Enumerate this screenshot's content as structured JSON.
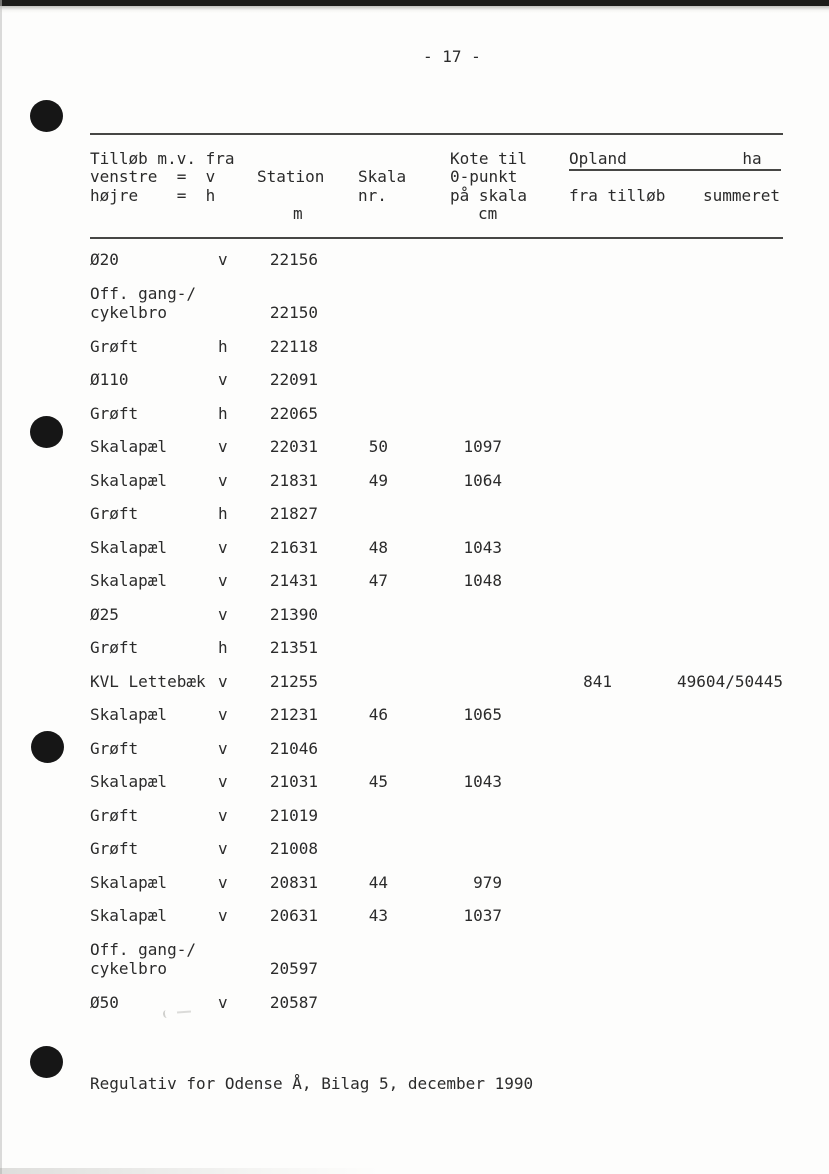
{
  "page": {
    "number": "- 17 -",
    "footer": "Regulativ for Odense Å, Bilag 5, december 1990"
  },
  "table": {
    "header": {
      "tributary_line1": "Tilløb m.v. fra",
      "tributary_line2": "venstre  =  v",
      "tributary_line3": "højre    =  h",
      "station": "Station",
      "station_unit": "m",
      "skala": "Skala",
      "skala_sub": "nr.",
      "kote_line1": "Kote til",
      "kote_line2": "0-punkt",
      "kote_line3": "på skala",
      "kote_unit": "cm",
      "opland_ha": "Opland            ha  ",
      "fra_tillob": "fra tilløb",
      "summeret": "summeret"
    },
    "rows": [
      {
        "name": "Ø20",
        "side": "v",
        "station": "22156",
        "skala": "",
        "kote": "",
        "fra": "",
        "sum": ""
      },
      {
        "name": "Off. gang-/\ncykelbro",
        "side": "",
        "station": "22150",
        "skala": "",
        "kote": "",
        "fra": "",
        "sum": ""
      },
      {
        "name": "Grøft",
        "side": "h",
        "station": "22118",
        "skala": "",
        "kote": "",
        "fra": "",
        "sum": ""
      },
      {
        "name": "Ø110",
        "side": "v",
        "station": "22091",
        "skala": "",
        "kote": "",
        "fra": "",
        "sum": ""
      },
      {
        "name": "Grøft",
        "side": "h",
        "station": "22065",
        "skala": "",
        "kote": "",
        "fra": "",
        "sum": ""
      },
      {
        "name": "Skalapæl",
        "side": "v",
        "station": "22031",
        "skala": "50",
        "kote": "1097",
        "fra": "",
        "sum": ""
      },
      {
        "name": "Skalapæl",
        "side": "v",
        "station": "21831",
        "skala": "49",
        "kote": "1064",
        "fra": "",
        "sum": ""
      },
      {
        "name": "Grøft",
        "side": "h",
        "station": "21827",
        "skala": "",
        "kote": "",
        "fra": "",
        "sum": ""
      },
      {
        "name": "Skalapæl",
        "side": "v",
        "station": "21631",
        "skala": "48",
        "kote": "1043",
        "fra": "",
        "sum": ""
      },
      {
        "name": "Skalapæl",
        "side": "v",
        "station": "21431",
        "skala": "47",
        "kote": "1048",
        "fra": "",
        "sum": ""
      },
      {
        "name": "Ø25",
        "side": "v",
        "station": "21390",
        "skala": "",
        "kote": "",
        "fra": "",
        "sum": ""
      },
      {
        "name": "Grøft",
        "side": "h",
        "station": "21351",
        "skala": "",
        "kote": "",
        "fra": "",
        "sum": ""
      },
      {
        "name": "KVL Lettebæk",
        "side": "v",
        "station": "21255",
        "skala": "",
        "kote": "",
        "fra": "841",
        "sum": "49604/50445"
      },
      {
        "name": "Skalapæl",
        "side": "v",
        "station": "21231",
        "skala": "46",
        "kote": "1065",
        "fra": "",
        "sum": ""
      },
      {
        "name": "Grøft",
        "side": "v",
        "station": "21046",
        "skala": "",
        "kote": "",
        "fra": "",
        "sum": ""
      },
      {
        "name": "Skalapæl",
        "side": "v",
        "station": "21031",
        "skala": "45",
        "kote": "1043",
        "fra": "",
        "sum": ""
      },
      {
        "name": "Grøft",
        "side": "v",
        "station": "21019",
        "skala": "",
        "kote": "",
        "fra": "",
        "sum": ""
      },
      {
        "name": "Grøft",
        "side": "v",
        "station": "21008",
        "skala": "",
        "kote": "",
        "fra": "",
        "sum": ""
      },
      {
        "name": "Skalapæl",
        "side": "v",
        "station": "20831",
        "skala": "44",
        "kote": "979",
        "fra": "",
        "sum": ""
      },
      {
        "name": "Skalapæl",
        "side": "v",
        "station": "20631",
        "skala": "43",
        "kote": "1037",
        "fra": "",
        "sum": ""
      },
      {
        "name": "Off. gang-/\ncykelbro",
        "side": "",
        "station": "20597",
        "skala": "",
        "kote": "",
        "fra": "",
        "sum": ""
      },
      {
        "name": "Ø50",
        "side": "v",
        "station": "20587",
        "skala": "",
        "kote": "",
        "fra": "",
        "sum": ""
      }
    ]
  }
}
